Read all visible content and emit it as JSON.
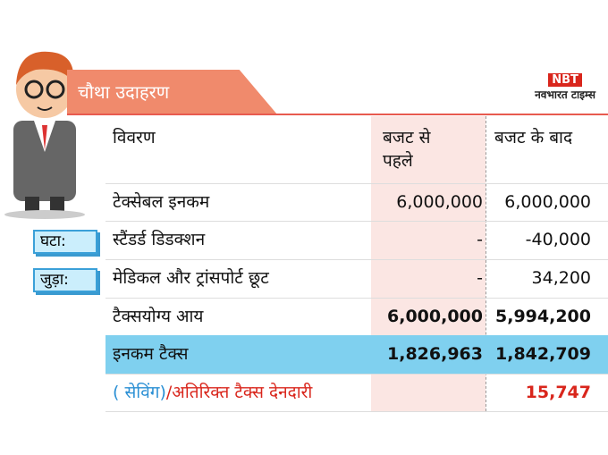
{
  "header": {
    "title": "चौथा उदाहरण",
    "logo_mark": "NBT",
    "logo_name": "नवभारत टाइम्स"
  },
  "table": {
    "columns": [
      "विवरण",
      "बजट से पहले",
      "बजट के बाद"
    ],
    "rows": [
      {
        "label": "टेक्सेबल इनकम",
        "before": "6,000,000",
        "after": "6,000,000"
      },
      {
        "tag": "घटा:",
        "label": "स्टैंडर्ड डिडक्शन",
        "before": "-",
        "after": "-40,000"
      },
      {
        "tag": "जुड़ा:",
        "label": "मेडिकल और ट्रांसपोर्ट छूट",
        "before": "-",
        "after": "34,200"
      },
      {
        "label": "टैक्सयोग्य आय",
        "before": "6,000,000",
        "after": "5,994,200"
      },
      {
        "label": "इनकम टैक्स",
        "before": "1,826,963",
        "after": "1,842,709"
      },
      {
        "label_parts": [
          "( सेविंग)",
          "/अतिरिक्त टैक्स देनदारी"
        ],
        "after": "15,747"
      }
    ]
  }
}
